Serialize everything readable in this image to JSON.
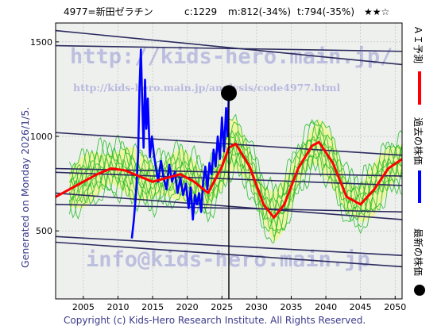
{
  "header": {
    "code_name": "4977=新田ゼラチン",
    "current_price": "c:1229",
    "max_price": "m:812(-34%)",
    "target_price": "t:794(-35%)",
    "rating": "★★☆"
  },
  "generated_label": "Generated on Monday 2026/1/5.",
  "watermark": {
    "url": "http://kids-hero.main.jp/",
    "analysis_url": "http://kids-hero.main.jp/analysis/code4977.html",
    "email": "info@kids-hero.main.jp"
  },
  "legend": {
    "ai_forecast": "ＡＩ予測",
    "past_price": "過去の株価",
    "latest_price": "最新の株価"
  },
  "footer": "Copyright (c) Kids-Hero Research Institute. All Rights Reserved.",
  "colors": {
    "background": "#ffffff",
    "plot_background": "#eef0ee",
    "grid": "#b8b8b8",
    "trend_lines": "#2b2b5e",
    "ai_forecast": "#ff0000",
    "past_price": "#0000ff",
    "simulations": "#22bb22",
    "band_fill": "#f0f58c",
    "latest_marker": "#000000"
  },
  "chart_data": {
    "type": "line",
    "xlim": [
      2001,
      2051
    ],
    "ylim": [
      140,
      1600
    ],
    "xticks": [
      2005,
      2010,
      2015,
      2020,
      2025,
      2030,
      2035,
      2040,
      2045,
      2050
    ],
    "yticks": [
      500,
      1000,
      1500
    ],
    "grid": true,
    "latest_point": {
      "x": 2026.0,
      "y": 1229
    },
    "series": [
      {
        "name": "過去の株価",
        "color": "#0000ff",
        "x": [
          2012.0,
          2012.3,
          2012.6,
          2012.9,
          2013.1,
          2013.3,
          2013.5,
          2013.7,
          2013.9,
          2014.1,
          2014.3,
          2014.6,
          2014.9,
          2015.2,
          2015.5,
          2015.8,
          2016.2,
          2016.6,
          2017.0,
          2017.4,
          2017.8,
          2018.2,
          2018.6,
          2019.0,
          2019.4,
          2019.8,
          2020.2,
          2020.5,
          2020.8,
          2021.1,
          2021.4,
          2021.7,
          2022.0,
          2022.3,
          2022.6,
          2022.9,
          2023.2,
          2023.5,
          2023.8,
          2024.1,
          2024.4,
          2024.7,
          2025.0,
          2025.3,
          2025.6,
          2025.8,
          2026.0
        ],
        "y": [
          460,
          560,
          700,
          900,
          1250,
          1460,
          1180,
          940,
          1300,
          1040,
          1200,
          890,
          1000,
          900,
          830,
          760,
          870,
          780,
          720,
          850,
          760,
          810,
          700,
          780,
          690,
          750,
          620,
          730,
          560,
          690,
          640,
          700,
          600,
          760,
          840,
          720,
          860,
          800,
          930,
          840,
          1000,
          880,
          1100,
          920,
          1150,
          1000,
          1229
        ]
      },
      {
        "name": "ＡＩ予測",
        "color": "#ff0000",
        "x": [
          2001,
          2003,
          2005,
          2007,
          2009,
          2011,
          2013,
          2015,
          2017,
          2019,
          2021,
          2023,
          2025,
          2026,
          2027,
          2029,
          2031,
          2032.5,
          2034,
          2036,
          2038,
          2039,
          2041,
          2043,
          2045,
          2047,
          2049,
          2051
        ],
        "y": [
          680,
          720,
          760,
          800,
          830,
          820,
          790,
          760,
          780,
          800,
          760,
          700,
          840,
          940,
          960,
          840,
          640,
          570,
          640,
          830,
          950,
          970,
          860,
          680,
          640,
          720,
          830,
          880
        ]
      }
    ],
    "trend_lines": [
      {
        "x": [
          2001,
          2051
        ],
        "y": [
          1480,
          1450
        ]
      },
      {
        "x": [
          2001,
          2051
        ],
        "y": [
          1560,
          1380
        ]
      },
      {
        "x": [
          2001,
          2051
        ],
        "y": [
          1020,
          900
        ]
      },
      {
        "x": [
          2001,
          2051
        ],
        "y": [
          830,
          790
        ]
      },
      {
        "x": [
          2001,
          2051
        ],
        "y": [
          810,
          740
        ]
      },
      {
        "x": [
          2001,
          2051
        ],
        "y": [
          700,
          560
        ]
      },
      {
        "x": [
          2001,
          2051
        ],
        "y": [
          640,
          600
        ]
      },
      {
        "x": [
          2001,
          2051
        ],
        "y": [
          470,
          370
        ]
      },
      {
        "x": [
          2001,
          2051
        ],
        "y": [
          440,
          310
        ]
      }
    ]
  }
}
